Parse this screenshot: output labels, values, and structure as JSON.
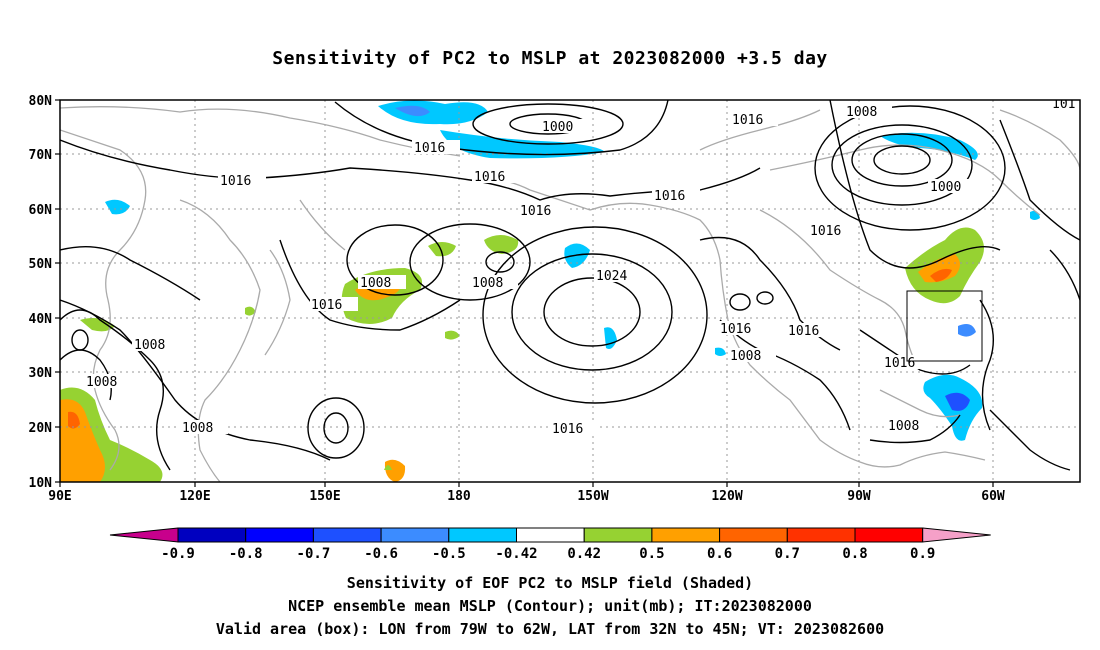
{
  "title": "Sensitivity of PC2 to MSLP at 2023082000 +3.5 day",
  "lat_labels": [
    "80N",
    "70N",
    "60N",
    "50N",
    "40N",
    "30N",
    "20N",
    "10N"
  ],
  "lon_labels": [
    "90E",
    "120E",
    "150E",
    "180",
    "150W",
    "120W",
    "90W",
    "60W"
  ],
  "contour_labels": [
    "1000",
    "1016",
    "1016",
    "1016",
    "1016",
    "1016",
    "1008",
    "1008",
    "1016",
    "1024",
    "1016",
    "1016",
    "1008",
    "1008",
    "1016",
    "1008",
    "1000",
    "1016",
    "1016",
    "1008",
    "1008",
    "1016",
    "1008",
    "101"
  ],
  "colorbar": {
    "ticks": [
      "-0.9",
      "-0.8",
      "-0.7",
      "-0.6",
      "-0.5",
      "-0.42",
      "0.42",
      "0.5",
      "0.6",
      "0.7",
      "0.8",
      "0.9"
    ],
    "colors": [
      "#c8008c",
      "#0000c0",
      "#0000ff",
      "#1e50ff",
      "#3c8cff",
      "#00c8ff",
      "#ffffff",
      "#96d232",
      "#ffa000",
      "#ff6400",
      "#ff3200",
      "#ff0000",
      "#f5a0c8"
    ]
  },
  "captions": [
    "Sensitivity of EOF PC2 to MSLP field (Shaded)",
    "NCEP ensemble mean MSLP (Contour); unit(mb); IT:2023082000",
    "Valid area (box): LON from 79W to 62W, LAT from 32N to 45N; VT: 2023082600"
  ]
}
